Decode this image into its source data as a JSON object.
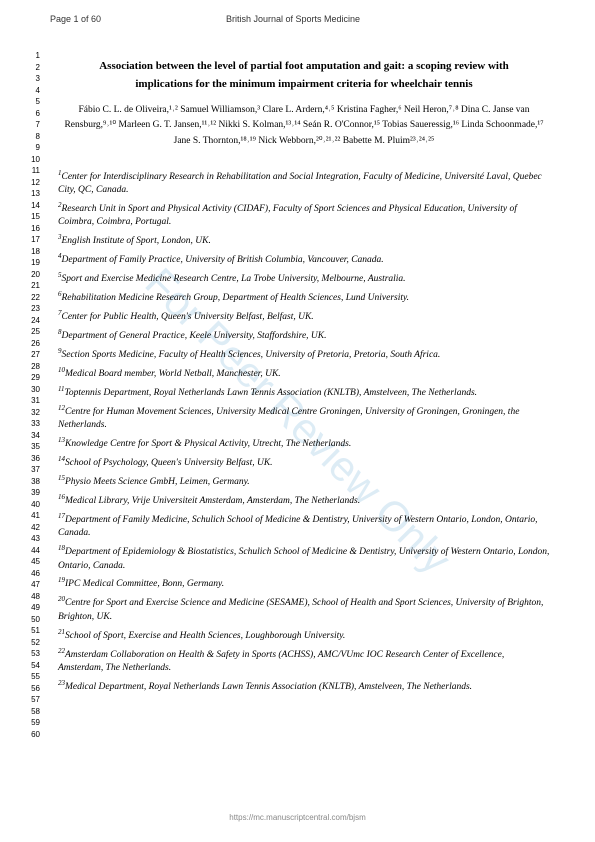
{
  "header": {
    "page": "Page 1 of 60",
    "journal": "British Journal of Sports Medicine"
  },
  "title": {
    "line1": "Association between the level of partial foot amputation and gait: a scoping review with",
    "line2": "implications for the minimum impairment criteria for wheelchair tennis"
  },
  "authors": "Fábio C. L. de Oliveira,¹˒² Samuel Williamson,³ Clare L. Ardern,⁴˒⁵ Kristina Fagher,⁶ Neil Heron,⁷˒⁸ Dina C. Janse van Rensburg,⁹˒¹⁰ Marleen G. T. Jansen,¹¹˒¹² Nikki S. Kolman,¹³˒¹⁴ Seán R. O'Connor,¹⁵ Tobias Saueressig,¹⁶ Linda Schoonmade,¹⁷ Jane S. Thornton,¹⁸˒¹⁹ Nick Webborn,²⁰˒²¹˒²² Babette M. Pluim²³˒²⁴˒²⁵",
  "affiliations": [
    {
      "num": "1",
      "text": "Center for Interdisciplinary Research in Rehabilitation and Social Integration, Faculty of Medicine, Université Laval, Quebec City, QC, Canada."
    },
    {
      "num": "2",
      "text": "Research Unit in Sport and Physical Activity (CIDAF), Faculty of Sport Sciences and Physical Education, University of Coimbra, Coimbra, Portugal."
    },
    {
      "num": "3",
      "text": "English Institute of Sport, London, UK."
    },
    {
      "num": "4",
      "text": "Department of Family Practice, University of British Columbia, Vancouver, Canada."
    },
    {
      "num": "5",
      "text": "Sport and Exercise Medicine Research Centre, La Trobe University, Melbourne, Australia."
    },
    {
      "num": "6",
      "text": "Rehabilitation Medicine Research Group, Department of Health Sciences, Lund University."
    },
    {
      "num": "7",
      "text": "Center for Public Health, Queen's University Belfast, Belfast, UK."
    },
    {
      "num": "8",
      "text": "Department of General Practice, Keele University, Staffordshire, UK."
    },
    {
      "num": "9",
      "text": "Section Sports Medicine, Faculty of Health Sciences, University of Pretoria, Pretoria, South Africa."
    },
    {
      "num": "10",
      "text": "Medical Board member, World Netball, Manchester, UK."
    },
    {
      "num": "11",
      "text": "Toptennis Department, Royal Netherlands Lawn Tennis Association (KNLTB), Amstelveen, The Netherlands."
    },
    {
      "num": "12",
      "text": "Centre for Human Movement Sciences, University Medical Centre Groningen, University of Groningen, Groningen, the Netherlands."
    },
    {
      "num": "13",
      "text": "Knowledge Centre for Sport & Physical Activity, Utrecht, The Netherlands."
    },
    {
      "num": "14",
      "text": "School of Psychology, Queen's University Belfast, UK."
    },
    {
      "num": "15",
      "text": "Physio Meets Science GmbH, Leimen, Germany."
    },
    {
      "num": "16",
      "text": "Medical Library, Vrije Universiteit Amsterdam, Amsterdam, The Netherlands."
    },
    {
      "num": "17",
      "text": "Department of Family Medicine, Schulich School of Medicine & Dentistry, University of Western Ontario, London, Ontario, Canada."
    },
    {
      "num": "18",
      "text": "Department of Epidemiology & Biostatistics, Schulich School of Medicine & Dentistry, University of Western Ontario, London, Ontario, Canada."
    },
    {
      "num": "19",
      "text": "IPC Medical Committee, Bonn, Germany."
    },
    {
      "num": "20",
      "text": "Centre for Sport and Exercise Science and Medicine (SESAME), School of Health and Sport Sciences, University of Brighton, Brighton, UK."
    },
    {
      "num": "21",
      "text": "School of Sport, Exercise and Health Sciences, Loughborough University."
    },
    {
      "num": "22",
      "text": "Amsterdam Collaboration on Health & Safety in Sports (ACHSS), AMC/VUmc IOC Research Center of Excellence, Amsterdam, The Netherlands."
    },
    {
      "num": "23",
      "text": "Medical Department, Royal Netherlands Lawn Tennis Association (KNLTB), Amstelveen, The Netherlands."
    }
  ],
  "watermark": "For Peer Review Only",
  "footer": "https://mc.manuscriptcentral.com/bjsm",
  "lineNumbers": {
    "start": 1,
    "end": 60
  },
  "styling": {
    "page_bg": "#ffffff",
    "text_color": "#000000",
    "watermark_color": "#c8e0f0",
    "footer_color": "#888888"
  }
}
